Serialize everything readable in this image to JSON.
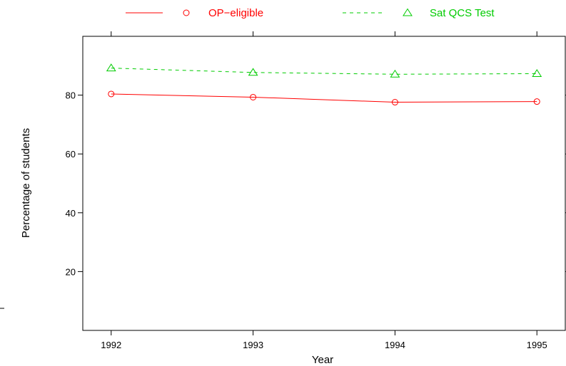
{
  "chart_data": {
    "type": "line",
    "xlabel": "Year",
    "ylabel": "Percentage of students",
    "x": [
      1992,
      1993,
      1994,
      1995
    ],
    "x_ticks": [
      "1992",
      "1993",
      "1994",
      "1995"
    ],
    "xlim": [
      1991.8,
      1995.2
    ],
    "ylim": [
      0,
      100
    ],
    "y_ticks": [
      "20",
      "40",
      "60",
      "80"
    ],
    "y_tick_values": [
      20,
      40,
      60,
      80
    ],
    "grid": false,
    "legend_position": "top",
    "series": [
      {
        "name": "OP−eligible",
        "values": [
          80.4,
          79.3,
          77.6,
          77.8
        ],
        "color": "#ff0000",
        "marker": "circle",
        "line": "solid"
      },
      {
        "name": "Sat QCS Test",
        "values": [
          89.2,
          87.7,
          87.1,
          87.3
        ],
        "color": "#00cc00",
        "marker": "triangle",
        "line": "dashed"
      }
    ]
  }
}
